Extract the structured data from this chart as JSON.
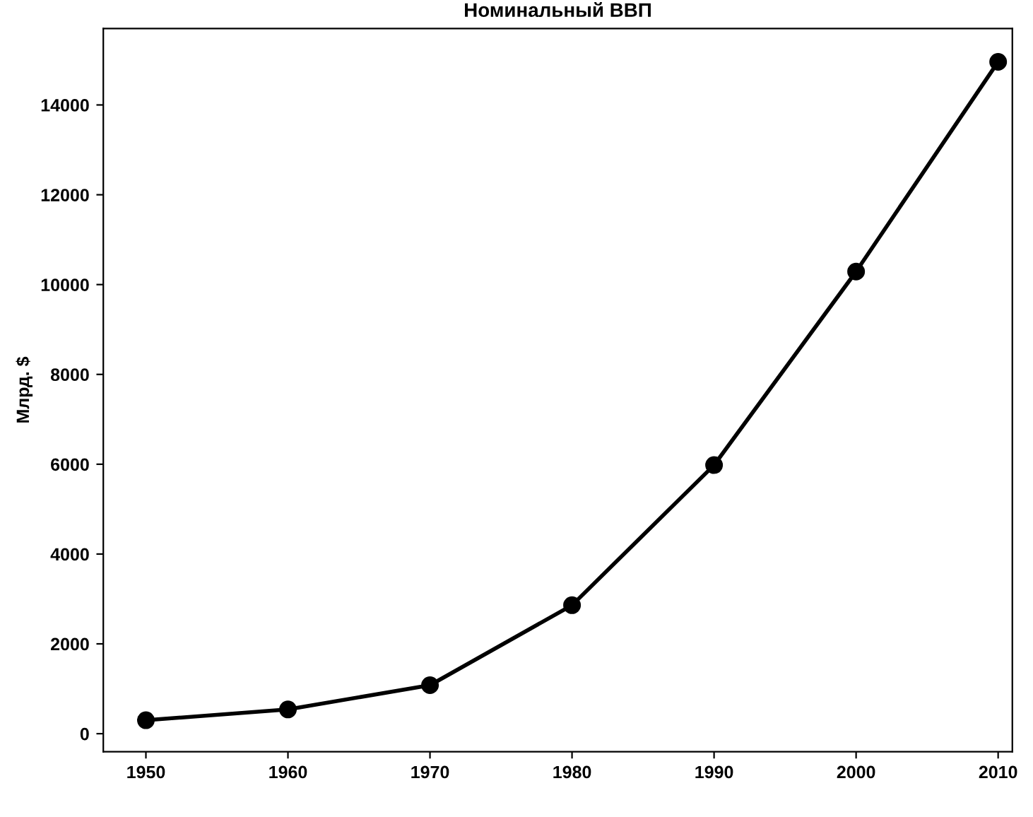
{
  "chart_data": {
    "type": "line",
    "title": "Номинальный ВВП",
    "ylabel": "Млрд. $",
    "x": [
      1950,
      1960,
      1970,
      1980,
      1990,
      2000,
      2010
    ],
    "series": [
      {
        "color": "#000000",
        "values": [
          300,
          540,
          1080,
          2860,
          5980,
          10290,
          14960
        ]
      }
    ],
    "xlim": [
      1947,
      2011
    ],
    "xticks": [
      1950,
      1960,
      1970,
      1980,
      1990,
      2000,
      2010
    ],
    "ylim": [
      -400,
      15700
    ],
    "yticks": [
      0,
      2000,
      4000,
      6000,
      8000,
      10000,
      12000,
      14000
    ],
    "marker": "circle",
    "line_style": "solid",
    "grid": false
  }
}
